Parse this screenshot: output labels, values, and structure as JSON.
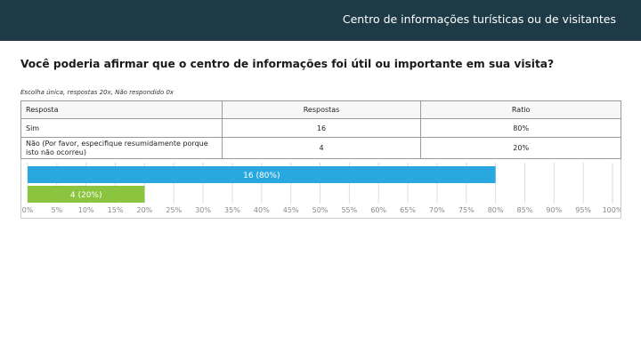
{
  "header": {
    "title": "Centro de informações turísticas ou de visitantes"
  },
  "question": "Você poderia afirmar que o centro de informações foi útil ou importante em sua visita?",
  "meta": "Escolha única, respostas 20x, Não respondido 0x",
  "table": {
    "headers": [
      "Resposta",
      "Respostas",
      "Ratio"
    ],
    "rows": [
      {
        "answer": "Sim",
        "count": "16",
        "ratio": "80%"
      },
      {
        "answer": "Não (Por favor, especifique resumidamente porque isto não ocorreu)",
        "count": "4",
        "ratio": "20%"
      }
    ]
  },
  "colors": {
    "header_bg": "#1d3a46",
    "bar_sim": "#29a8e0",
    "bar_nao": "#8bc53f",
    "grid": "#dddddd",
    "tick": "#888888"
  },
  "chart_data": {
    "type": "bar",
    "orientation": "horizontal",
    "categories": [
      "Sim",
      "Não (Por favor, especifique resumidamente porque isto não ocorreu)"
    ],
    "values": [
      80,
      20
    ],
    "labels": [
      "16 (80%)",
      "4 (20%)"
    ],
    "xlim": [
      0,
      100
    ],
    "xticks": [
      "0%",
      "5%",
      "10%",
      "15%",
      "20%",
      "25%",
      "30%",
      "35%",
      "40%",
      "45%",
      "50%",
      "55%",
      "60%",
      "65%",
      "70%",
      "75%",
      "80%",
      "85%",
      "90%",
      "95%",
      "100%"
    ],
    "grid": true
  }
}
